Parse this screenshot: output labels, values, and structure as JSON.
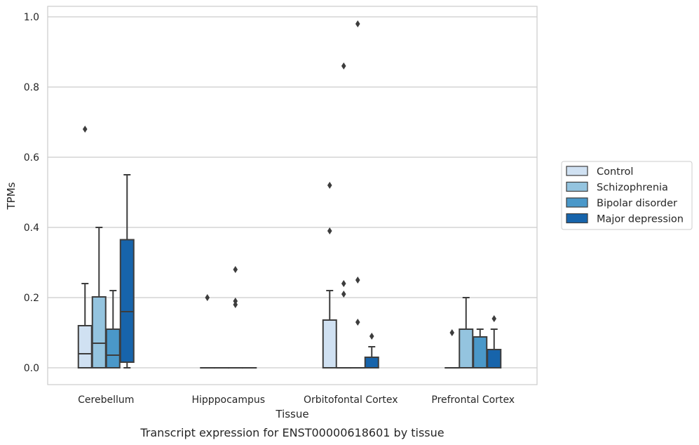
{
  "chart_data": {
    "type": "box",
    "title": "",
    "caption": "Transcript expression for ENST00000618601 by tissue",
    "xlabel": "Tissue",
    "ylabel": "TPMs",
    "ylim": [
      -0.045,
      1.03
    ],
    "yticks": [
      "0.0",
      "0.2",
      "0.4",
      "0.6",
      "0.8",
      "1.0"
    ],
    "grid": true,
    "legend_position": "right",
    "categories": [
      "Cerebellum",
      "Hipppocampus",
      "Orbitofontal Cortex",
      "Prefrontal Cortex"
    ],
    "series": [
      {
        "name": "Control",
        "color": "#d0e1f2",
        "boxes": [
          {
            "whislo": 0.0,
            "q1": 0.0,
            "med": 0.04,
            "q3": 0.12,
            "whishi": 0.24,
            "fliers": [
              0.68
            ]
          },
          {
            "whislo": 0.0,
            "q1": 0.0,
            "med": 0.0,
            "q3": 0.0,
            "whishi": 0.0,
            "fliers": [
              0.2
            ]
          },
          {
            "whislo": 0.0,
            "q1": 0.0,
            "med": 0.0,
            "q3": 0.136,
            "whishi": 0.22,
            "fliers": [
              0.39,
              0.52
            ]
          },
          {
            "whislo": 0.0,
            "q1": 0.0,
            "med": 0.0,
            "q3": 0.0,
            "whishi": 0.0,
            "fliers": [
              0.1
            ]
          }
        ]
      },
      {
        "name": "Schizophrenia",
        "color": "#94c4df",
        "boxes": [
          {
            "whislo": 0.0,
            "q1": 0.0,
            "med": 0.07,
            "q3": 0.202,
            "whishi": 0.4,
            "fliers": []
          },
          {
            "whislo": 0.0,
            "q1": 0.0,
            "med": 0.0,
            "q3": 0.0,
            "whishi": 0.0,
            "fliers": []
          },
          {
            "whislo": 0.0,
            "q1": 0.0,
            "med": 0.0,
            "q3": 0.0,
            "whishi": 0.0,
            "fliers": [
              0.21,
              0.24,
              0.86
            ]
          },
          {
            "whislo": 0.0,
            "q1": 0.0,
            "med": 0.0,
            "q3": 0.11,
            "whishi": 0.2,
            "fliers": []
          }
        ]
      },
      {
        "name": "Bipolar disorder",
        "color": "#4a98c9",
        "boxes": [
          {
            "whislo": 0.0,
            "q1": 0.0,
            "med": 0.036,
            "q3": 0.11,
            "whishi": 0.22,
            "fliers": []
          },
          {
            "whislo": 0.0,
            "q1": 0.0,
            "med": 0.0,
            "q3": 0.0,
            "whishi": 0.0,
            "fliers": [
              0.18,
              0.19,
              0.28
            ]
          },
          {
            "whislo": 0.0,
            "q1": 0.0,
            "med": 0.0,
            "q3": 0.0,
            "whishi": 0.0,
            "fliers": [
              0.13,
              0.25,
              0.98
            ]
          },
          {
            "whislo": 0.0,
            "q1": 0.0,
            "med": 0.0,
            "q3": 0.088,
            "whishi": 0.11,
            "fliers": []
          }
        ]
      },
      {
        "name": "Major depression",
        "color": "#1764ab",
        "boxes": [
          {
            "whislo": 0.0,
            "q1": 0.016,
            "med": 0.16,
            "q3": 0.365,
            "whishi": 0.55,
            "fliers": []
          },
          {
            "whislo": 0.0,
            "q1": 0.0,
            "med": 0.0,
            "q3": 0.0,
            "whishi": 0.0,
            "fliers": []
          },
          {
            "whislo": 0.0,
            "q1": 0.0,
            "med": 0.0,
            "q3": 0.03,
            "whishi": 0.06,
            "fliers": [
              0.09
            ]
          },
          {
            "whislo": 0.0,
            "q1": 0.0,
            "med": 0.0,
            "q3": 0.052,
            "whishi": 0.11,
            "fliers": [
              0.14
            ]
          }
        ]
      }
    ]
  }
}
